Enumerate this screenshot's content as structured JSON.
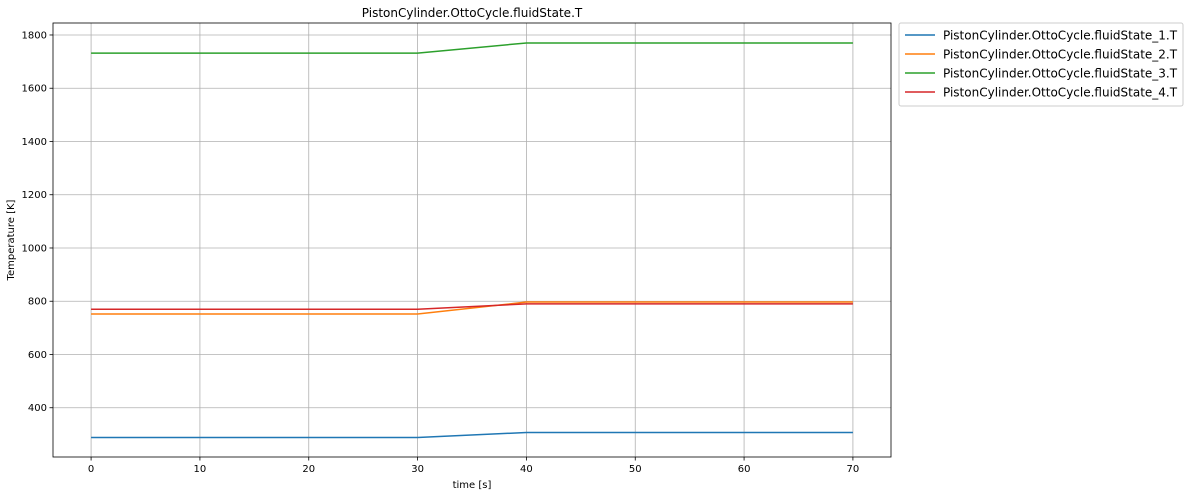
{
  "chart_data": {
    "type": "line",
    "title": "PistonCylinder.OttoCycle.fluidState.T",
    "xlabel": "time [s]",
    "ylabel": "Temperature [K]",
    "xlim": [
      -3.5,
      73.5
    ],
    "ylim": [
      215,
      1845
    ],
    "xticks": [
      0,
      10,
      20,
      30,
      40,
      50,
      60,
      70
    ],
    "yticks": [
      400,
      600,
      800,
      1000,
      1200,
      1400,
      1600,
      1800
    ],
    "grid": true,
    "legend_position": "outside-top-right",
    "x": [
      0,
      10,
      20,
      30,
      40,
      50,
      60,
      70
    ],
    "series": [
      {
        "name": "PistonCylinder.OttoCycle.fluidState_1.T",
        "color": "#1f77b4",
        "values": [
          288,
          288,
          288,
          288,
          307,
          307,
          307,
          307
        ]
      },
      {
        "name": "PistonCylinder.OttoCycle.fluidState_2.T",
        "color": "#ff7f0e",
        "values": [
          752,
          752,
          752,
          752,
          797,
          797,
          797,
          797
        ]
      },
      {
        "name": "PistonCylinder.OttoCycle.fluidState_3.T",
        "color": "#2ca02c",
        "values": [
          1732,
          1732,
          1732,
          1732,
          1770,
          1770,
          1770,
          1770
        ]
      },
      {
        "name": "PistonCylinder.OttoCycle.fluidState_4.T",
        "color": "#d62728",
        "values": [
          770,
          770,
          770,
          770,
          790,
          790,
          790,
          790
        ]
      }
    ]
  }
}
